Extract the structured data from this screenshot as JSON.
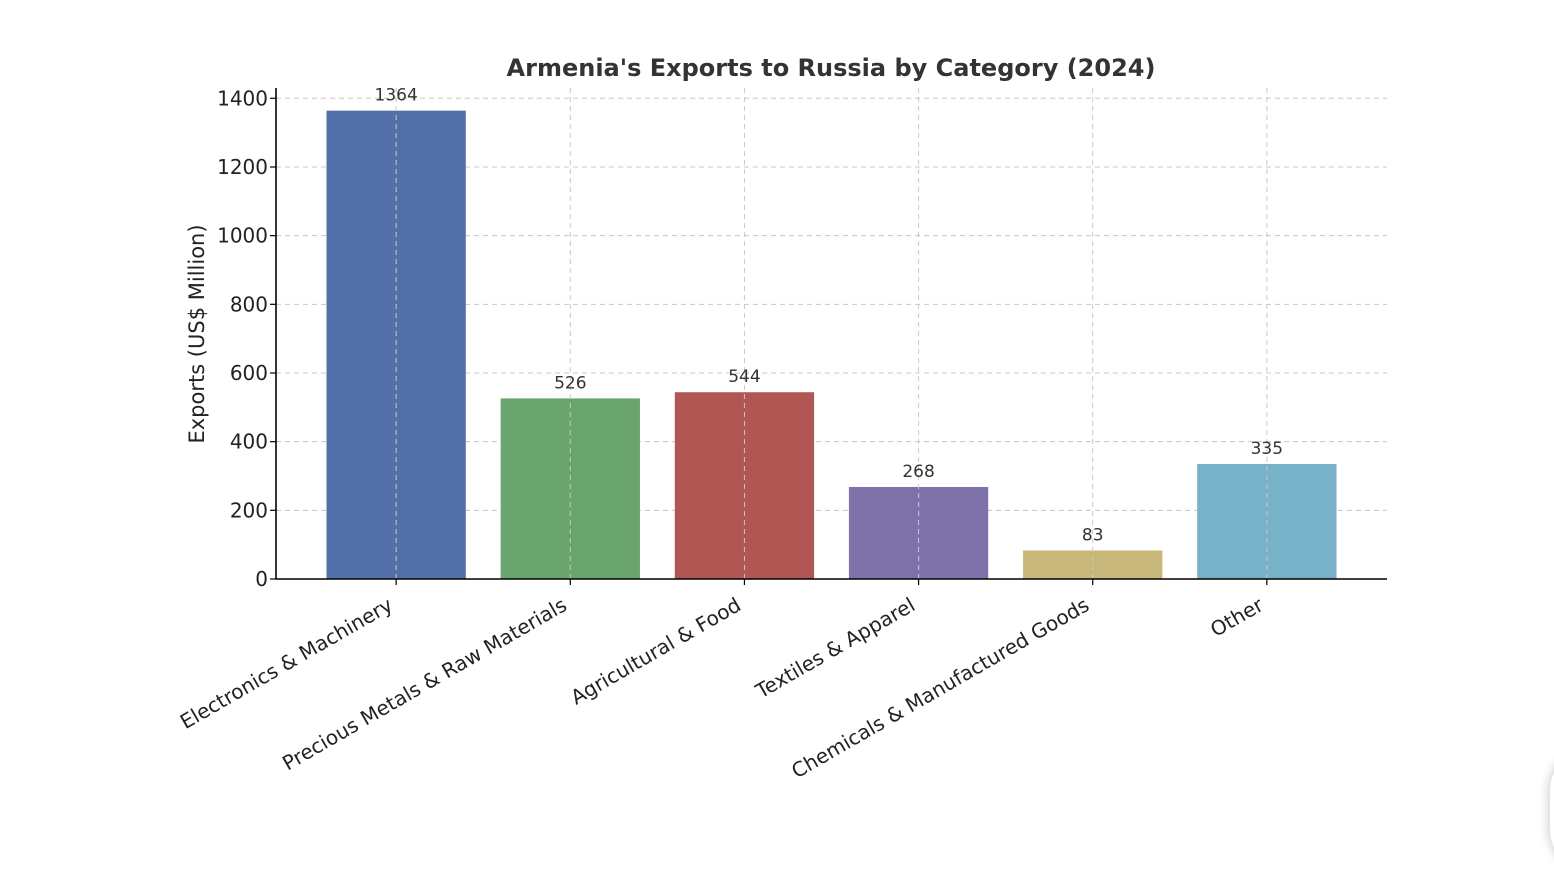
{
  "chart_data": {
    "type": "bar",
    "title": "Armenia's Exports to Russia by Category (2024)",
    "xlabel": "",
    "ylabel": "Exports (US$ Million)",
    "categories": [
      "Electronics & Machinery",
      "Precious Metals & Raw Materials",
      "Agricultural & Food",
      "Textiles & Apparel",
      "Chemicals & Manufactured Goods",
      "Other"
    ],
    "values": [
      1364,
      526,
      544,
      268,
      83,
      335
    ],
    "value_labels": [
      "1364",
      "526",
      "544",
      "268",
      "83",
      "335"
    ],
    "colors": [
      "#5470a8",
      "#6aa56e",
      "#b15753",
      "#7f72ab",
      "#c8b87a",
      "#78b2c8"
    ],
    "ylim": [
      0,
      1430
    ],
    "yticks": [
      0,
      200,
      400,
      600,
      800,
      1000,
      1200,
      1400
    ],
    "ytick_labels": [
      "0",
      "200",
      "400",
      "600",
      "800",
      "1000",
      "1200",
      "1400"
    ],
    "grid": true,
    "legend": "none"
  }
}
